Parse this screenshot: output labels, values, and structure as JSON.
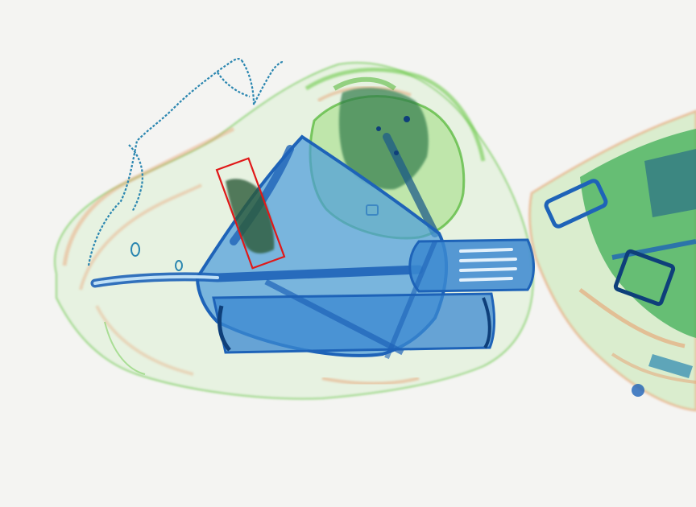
{
  "scan": {
    "background": "#f4f4f2",
    "palette": {
      "organic": "#e8a070",
      "mixed": "#5cbf3a",
      "metal": "#1e63b8",
      "dense": "#0e3f7a",
      "highlight": "#e01818"
    },
    "objects": [
      "bag-outline-icon",
      "chain-icon",
      "frying-pan-icon",
      "spatula-icon",
      "electronic-device-icon",
      "second-bag-icon"
    ],
    "annotations": [
      {
        "type": "detection-box",
        "label": ""
      }
    ]
  }
}
